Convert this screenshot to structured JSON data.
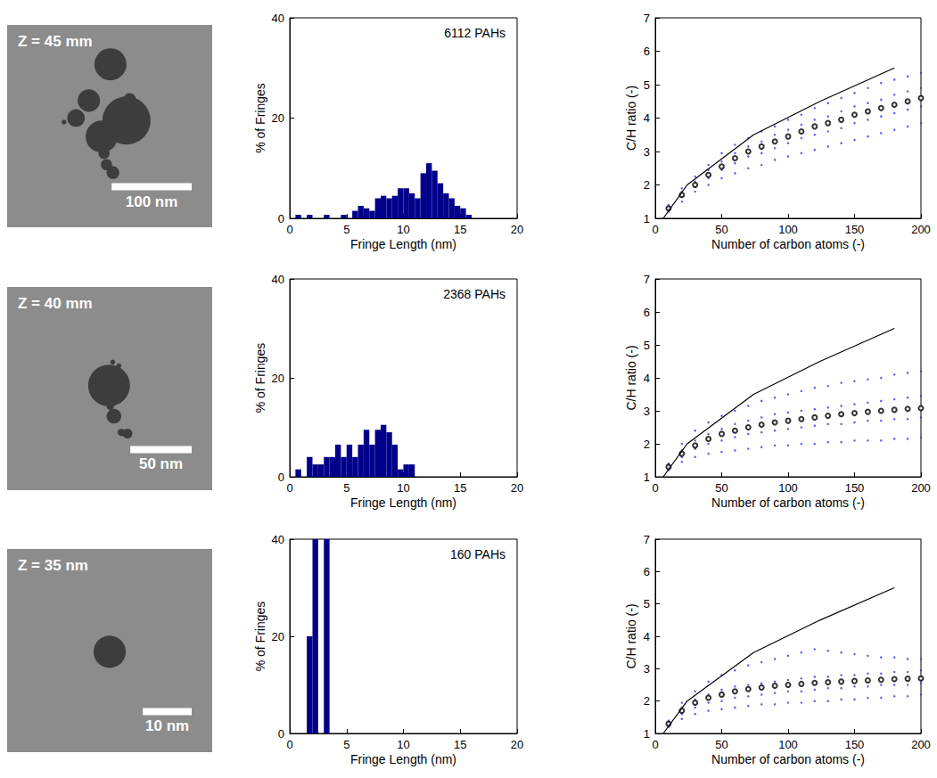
{
  "chart_data": [
    {
      "type": "image",
      "title": "Z = 45 mm",
      "xlim": [
        0,
        256
      ],
      "ylim": [
        0,
        252
      ],
      "tick_labels": false,
      "circles": {
        "x": [
          129,
          149,
          118,
          102,
          86,
          153,
          71,
          116,
          121,
          124,
          132
        ],
        "y": [
          203,
          133,
          113,
          159,
          136,
          159,
          131,
          102,
          92,
          78,
          69
        ],
        "r": [
          20,
          30,
          20,
          14,
          11,
          8,
          3,
          6,
          7,
          7,
          8
        ]
      },
      "scale_bar": {
        "length": 100,
        "label": "100 nm"
      }
    },
    {
      "type": "histogram",
      "annotation": "6112 PAHs",
      "x_label": "Fringe Length (nm)",
      "y_label": "% of Fringes",
      "xlim": [
        0,
        20
      ],
      "ylim": [
        0,
        40
      ],
      "xticks": [
        0,
        5,
        10,
        15,
        20
      ],
      "yticks": [
        0,
        20,
        40
      ],
      "color": "#00008b",
      "bins": [
        0,
        0.5,
        1,
        1.5,
        2,
        2.5,
        3,
        3.5,
        4,
        4.5,
        5,
        5.5,
        6,
        6.5,
        7,
        7.5,
        8,
        8.5,
        9,
        9.5,
        10,
        10.5,
        11,
        11.5,
        12,
        12.5,
        13,
        13.5,
        14,
        14.5,
        15,
        15.5,
        16,
        16.5,
        17,
        17.5,
        18,
        18.5,
        19,
        19.5,
        20
      ],
      "values": [
        0,
        0.7,
        0,
        0.7,
        0,
        0,
        0.7,
        0,
        0,
        0.7,
        0,
        1.5,
        2.5,
        2,
        1.5,
        4,
        4.5,
        4,
        4.5,
        6,
        6,
        5,
        4,
        9,
        11,
        9.5,
        7,
        5,
        4,
        2.5,
        2,
        0.7,
        0,
        0,
        0,
        0,
        0,
        0,
        0,
        0
      ]
    },
    {
      "type": "scatter",
      "x_label": "Number of carbon atoms (-)",
      "y_label": "C/H ratio (-)",
      "xlim": [
        0,
        200
      ],
      "ylim": [
        1,
        7
      ],
      "xticks": [
        0,
        50,
        100,
        150,
        200
      ],
      "yticks": [
        1,
        2,
        3,
        4,
        5,
        6,
        7
      ],
      "series": [
        {
          "type": "scatter",
          "marker": "dot",
          "color": "#3333ff",
          "x": [
            10,
            10,
            10,
            10,
            20,
            20,
            20,
            20,
            30,
            30,
            30,
            30,
            40,
            40,
            40,
            40,
            50,
            50,
            50,
            50,
            60,
            60,
            60,
            60,
            70,
            70,
            70,
            70,
            80,
            80,
            80,
            80,
            90,
            90,
            90,
            90,
            100,
            100,
            100,
            100,
            110,
            110,
            110,
            110,
            120,
            120,
            120,
            120,
            130,
            130,
            130,
            130,
            140,
            140,
            140,
            140,
            150,
            150,
            150,
            150,
            160,
            160,
            160,
            160,
            170,
            170,
            170,
            170,
            180,
            180,
            180,
            180,
            190,
            190,
            190,
            190,
            200,
            200,
            200,
            200
          ],
          "values": [
            1.2,
            1.3,
            1.4,
            1.35,
            1.5,
            1.65,
            1.8,
            1.9,
            1.8,
            1.95,
            2.1,
            2.25,
            2.0,
            2.2,
            2.45,
            2.6,
            2.2,
            2.45,
            2.7,
            2.95,
            2.35,
            2.65,
            2.95,
            3.2,
            2.5,
            2.85,
            3.15,
            3.4,
            2.6,
            2.95,
            3.3,
            3.6,
            2.75,
            3.1,
            3.5,
            3.75,
            2.85,
            3.25,
            3.65,
            3.95,
            2.95,
            3.4,
            3.8,
            4.1,
            3.05,
            3.5,
            3.95,
            4.3,
            3.15,
            3.6,
            4.05,
            4.45,
            3.25,
            3.7,
            4.2,
            4.6,
            3.35,
            3.85,
            4.35,
            4.75,
            3.45,
            3.95,
            4.45,
            4.9,
            3.55,
            4.05,
            4.55,
            5.05,
            3.65,
            4.15,
            4.7,
            5.15,
            3.75,
            4.25,
            4.8,
            5.25,
            3.85,
            4.35,
            4.9,
            5.35
          ]
        },
        {
          "type": "line",
          "line_style": "solid",
          "color": "#000000",
          "x": [
            6,
            24,
            74,
            124,
            180
          ],
          "values": [
            1,
            2,
            3.5,
            4.5,
            5.5
          ]
        },
        {
          "type": "scatter",
          "marker": "open_circle",
          "color": "#000000",
          "x": [
            10,
            20,
            30,
            40,
            50,
            60,
            70,
            80,
            90,
            100,
            110,
            120,
            130,
            140,
            150,
            160,
            170,
            180,
            190,
            200
          ],
          "values": [
            1.3,
            1.7,
            2.0,
            2.3,
            2.55,
            2.8,
            3.0,
            3.15,
            3.3,
            3.45,
            3.6,
            3.75,
            3.85,
            3.95,
            4.1,
            4.2,
            4.3,
            4.4,
            4.5,
            4.6
          ]
        }
      ]
    },
    {
      "type": "image",
      "title": "Z = 40 mm",
      "xlim": [
        0,
        167
      ],
      "ylim": [
        0,
        165
      ],
      "tick_labels": false,
      "circles": {
        "x": [
          83,
          87,
          84,
          93,
          98,
          86,
          91
        ],
        "y": [
          85,
          60,
          68,
          47,
          46,
          104,
          101
        ],
        "r": [
          17,
          6,
          3,
          3,
          4,
          2,
          2
        ]
      },
      "scale_bar": {
        "length": 50,
        "label": "50 nm"
      }
    },
    {
      "type": "histogram",
      "annotation": "2368 PAHs",
      "x_label": "Fringe Length (nm)",
      "y_label": "% of Fringes",
      "xlim": [
        0,
        20
      ],
      "ylim": [
        0,
        40
      ],
      "xticks": [
        0,
        5,
        10,
        15,
        20
      ],
      "yticks": [
        0,
        20,
        40
      ],
      "color": "#00008b",
      "bins": [
        0,
        0.5,
        1,
        1.5,
        2,
        2.5,
        3,
        3.5,
        4,
        4.5,
        5,
        5.5,
        6,
        6.5,
        7,
        7.5,
        8,
        8.5,
        9,
        9.5,
        10,
        10.5,
        11,
        11.5,
        12,
        12.5,
        13,
        13.5,
        14,
        14.5,
        15,
        15.5,
        16,
        16.5,
        17,
        17.5,
        18,
        18.5,
        19,
        19.5,
        20
      ],
      "values": [
        0,
        1.5,
        0,
        4,
        2.5,
        2.5,
        4,
        4,
        6.5,
        4,
        6.5,
        4,
        6.5,
        9.5,
        6.5,
        9.5,
        10.5,
        9,
        6.5,
        1.5,
        2.5,
        2.5,
        0,
        0,
        0,
        0,
        0,
        0,
        0,
        0,
        0,
        0,
        0,
        0,
        0,
        0,
        0,
        0,
        0,
        0
      ]
    },
    {
      "type": "scatter",
      "x_label": "Number of carbon atoms (-)",
      "y_label": "C/H ratio (-)",
      "xlim": [
        0,
        200
      ],
      "ylim": [
        1,
        7
      ],
      "xticks": [
        0,
        50,
        100,
        150,
        200
      ],
      "yticks": [
        1,
        2,
        3,
        4,
        5,
        6,
        7
      ],
      "series": [
        {
          "type": "scatter",
          "marker": "dot",
          "color": "#3333ff",
          "x": [
            10,
            10,
            10,
            10,
            20,
            20,
            20,
            20,
            30,
            30,
            30,
            30,
            40,
            40,
            40,
            40,
            50,
            50,
            50,
            50,
            60,
            60,
            60,
            60,
            70,
            70,
            70,
            70,
            80,
            80,
            80,
            80,
            90,
            90,
            90,
            90,
            100,
            100,
            100,
            100,
            110,
            110,
            110,
            110,
            120,
            120,
            120,
            120,
            130,
            130,
            130,
            130,
            140,
            140,
            140,
            140,
            150,
            150,
            150,
            150,
            160,
            160,
            160,
            160,
            170,
            170,
            170,
            170,
            180,
            180,
            180,
            180,
            190,
            190,
            190,
            190,
            200,
            200,
            200,
            200
          ],
          "values": [
            1.2,
            1.3,
            1.4,
            1.35,
            1.45,
            1.6,
            1.8,
            2.0,
            1.6,
            1.85,
            2.1,
            2.4,
            1.7,
            2.0,
            2.3,
            2.65,
            1.75,
            2.1,
            2.45,
            2.85,
            1.8,
            2.2,
            2.6,
            3.0,
            1.85,
            2.3,
            2.7,
            3.15,
            1.9,
            2.35,
            2.8,
            3.3,
            1.95,
            2.4,
            2.9,
            3.4,
            1.95,
            2.45,
            2.95,
            3.5,
            2.0,
            2.5,
            3.0,
            3.6,
            2.0,
            2.55,
            3.05,
            3.7,
            2.05,
            2.6,
            3.1,
            3.75,
            2.05,
            2.6,
            3.15,
            3.85,
            2.1,
            2.65,
            3.2,
            3.9,
            2.1,
            2.7,
            3.25,
            3.95,
            2.1,
            2.7,
            3.3,
            4.0,
            2.15,
            2.75,
            3.35,
            4.1,
            2.15,
            2.75,
            3.4,
            4.15,
            2.2,
            2.8,
            3.45,
            4.2
          ]
        },
        {
          "type": "line",
          "line_style": "solid",
          "color": "#000000",
          "x": [
            6,
            24,
            74,
            124,
            180
          ],
          "values": [
            1,
            2,
            3.5,
            4.5,
            5.5
          ]
        },
        {
          "type": "scatter",
          "marker": "open_circle",
          "color": "#000000",
          "x": [
            10,
            20,
            30,
            40,
            50,
            60,
            70,
            80,
            90,
            100,
            110,
            120,
            130,
            140,
            150,
            160,
            170,
            180,
            190,
            200
          ],
          "values": [
            1.3,
            1.7,
            1.95,
            2.15,
            2.3,
            2.4,
            2.5,
            2.58,
            2.65,
            2.7,
            2.75,
            2.8,
            2.85,
            2.9,
            2.93,
            2.97,
            3.0,
            3.03,
            3.06,
            3.08
          ]
        }
      ]
    },
    {
      "type": "image",
      "title": "Z = 35 nm",
      "xlim": [
        0,
        42
      ],
      "ylim": [
        0,
        41.5
      ],
      "tick_labels": false,
      "circles": {
        "x": [
          21
        ],
        "y": [
          20.5
        ],
        "r": [
          3.3
        ]
      },
      "scale_bar": {
        "length": 10,
        "label": "10 nm"
      }
    },
    {
      "type": "histogram",
      "annotation": "160 PAHs",
      "x_label": "Fringe Length (nm)",
      "y_label": "% of Fringes",
      "xlim": [
        0,
        20
      ],
      "ylim": [
        0,
        40
      ],
      "xticks": [
        0,
        5,
        10,
        15,
        20
      ],
      "yticks": [
        0,
        20,
        40
      ],
      "color": "#00008b",
      "bins": [
        0,
        0.5,
        1,
        1.5,
        2,
        2.5,
        3,
        3.5,
        4,
        4.5,
        5,
        5.5,
        6,
        6.5,
        7,
        7.5,
        8,
        8.5,
        9,
        9.5,
        10,
        10.5,
        11,
        11.5,
        12,
        12.5,
        13,
        13.5,
        14,
        14.5,
        15,
        15.5,
        16,
        16.5,
        17,
        17.5,
        18,
        18.5,
        19,
        19.5,
        20
      ],
      "values": [
        0,
        0,
        0,
        20,
        40,
        0,
        40,
        0,
        0,
        0,
        0,
        0,
        0,
        0,
        0,
        0,
        0,
        0,
        0,
        0,
        0,
        0,
        0,
        0,
        0,
        0,
        0,
        0,
        0,
        0,
        0,
        0,
        0,
        0,
        0,
        0,
        0,
        0,
        0,
        0
      ]
    },
    {
      "type": "scatter",
      "x_label": "Number of carbon atoms (-)",
      "y_label": "C/H ratio (-)",
      "xlim": [
        0,
        200
      ],
      "ylim": [
        1,
        7
      ],
      "xticks": [
        0,
        50,
        100,
        150,
        200
      ],
      "yticks": [
        1,
        2,
        3,
        4,
        5,
        6,
        7
      ],
      "series": [
        {
          "type": "scatter",
          "marker": "dot",
          "color": "#3333ff",
          "x": [
            10,
            10,
            10,
            10,
            20,
            20,
            20,
            20,
            30,
            30,
            30,
            30,
            40,
            40,
            40,
            40,
            50,
            50,
            50,
            50,
            60,
            60,
            60,
            60,
            70,
            70,
            70,
            70,
            80,
            80,
            80,
            80,
            90,
            90,
            90,
            90,
            100,
            100,
            100,
            100,
            110,
            110,
            110,
            110,
            120,
            120,
            120,
            120,
            130,
            130,
            130,
            130,
            140,
            140,
            140,
            140,
            150,
            150,
            150,
            150,
            160,
            160,
            160,
            160,
            170,
            170,
            170,
            170,
            180,
            180,
            180,
            180,
            190,
            190,
            190,
            190,
            200,
            200,
            200,
            200
          ],
          "values": [
            1.2,
            1.3,
            1.4,
            1.35,
            1.45,
            1.6,
            1.8,
            1.95,
            1.6,
            1.8,
            2.05,
            2.3,
            1.7,
            1.95,
            2.2,
            2.6,
            1.75,
            2.0,
            2.35,
            2.8,
            1.8,
            2.1,
            2.45,
            2.95,
            1.85,
            2.15,
            2.5,
            3.1,
            1.9,
            2.2,
            2.55,
            3.2,
            1.9,
            2.25,
            2.6,
            3.3,
            1.95,
            2.3,
            2.65,
            3.4,
            1.95,
            2.3,
            2.7,
            3.5,
            2.0,
            2.35,
            2.75,
            3.6,
            2.0,
            2.4,
            2.75,
            3.55,
            2.05,
            2.4,
            2.8,
            3.5,
            2.05,
            2.45,
            2.8,
            3.45,
            2.1,
            2.45,
            2.85,
            3.4,
            2.1,
            2.5,
            2.85,
            3.35,
            2.15,
            2.5,
            2.9,
            3.35,
            2.15,
            2.5,
            2.9,
            3.3,
            2.2,
            2.55,
            2.95,
            3.3
          ]
        },
        {
          "type": "line",
          "line_style": "solid",
          "color": "#000000",
          "x": [
            6,
            24,
            74,
            124,
            180
          ],
          "values": [
            1,
            2,
            3.5,
            4.5,
            5.5
          ]
        },
        {
          "type": "scatter",
          "marker": "open_circle",
          "color": "#000000",
          "x": [
            10,
            20,
            30,
            40,
            50,
            60,
            70,
            80,
            90,
            100,
            110,
            120,
            130,
            140,
            150,
            160,
            170,
            180,
            190,
            200
          ],
          "values": [
            1.3,
            1.7,
            1.95,
            2.1,
            2.2,
            2.3,
            2.37,
            2.42,
            2.47,
            2.5,
            2.53,
            2.56,
            2.58,
            2.6,
            2.62,
            2.64,
            2.66,
            2.68,
            2.69,
            2.7
          ]
        }
      ]
    }
  ]
}
